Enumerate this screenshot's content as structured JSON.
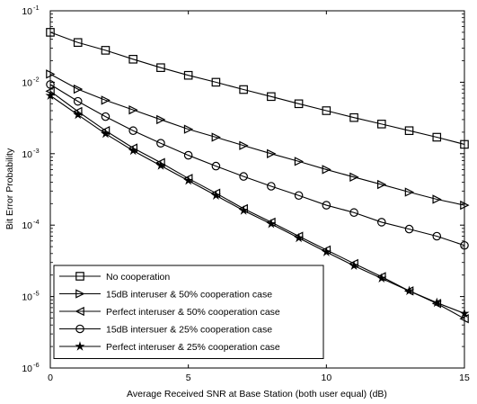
{
  "chart_data": {
    "type": "line",
    "title": "",
    "xlabel": "Average Received SNR at Base Station (both user equal) (dB)",
    "ylabel": "Bit Error Probability",
    "xlim": [
      0,
      15
    ],
    "ylim": [
      1e-06,
      0.1
    ],
    "yscale": "log",
    "grid": false,
    "legend_position": "bottom-left",
    "x_ticks": [
      0,
      5,
      10,
      15
    ],
    "x_tick_labels": [
      "0",
      "5",
      "10",
      "15"
    ],
    "y_ticks": [
      1e-06,
      1e-05,
      0.0001,
      0.001,
      0.01,
      0.1
    ],
    "y_tick_labels": [
      {
        "base": "10",
        "exp": "-6"
      },
      {
        "base": "10",
        "exp": "-5"
      },
      {
        "base": "10",
        "exp": "-4"
      },
      {
        "base": "10",
        "exp": "-3"
      },
      {
        "base": "10",
        "exp": "-2"
      },
      {
        "base": "10",
        "exp": "-1"
      }
    ],
    "x": [
      0,
      1,
      2,
      3,
      4,
      5,
      6,
      7,
      8,
      9,
      10,
      11,
      12,
      13,
      14,
      15
    ],
    "series": [
      {
        "name": "No cooperation",
        "marker": "square",
        "values": [
          0.05,
          0.036,
          0.028,
          0.021,
          0.016,
          0.0125,
          0.01,
          0.0079,
          0.0063,
          0.005,
          0.004,
          0.0032,
          0.0026,
          0.0021,
          0.0017,
          0.00135
        ]
      },
      {
        "name": "15dB interuser & 50% cooperation case",
        "marker": "triangle-right",
        "values": [
          0.013,
          0.008,
          0.0056,
          0.0041,
          0.003,
          0.0022,
          0.0017,
          0.0013,
          0.001,
          0.00078,
          0.0006,
          0.00047,
          0.00037,
          0.00029,
          0.00023,
          0.00019
        ]
      },
      {
        "name": "Perfect interuser & 50% cooperation case",
        "marker": "triangle-left",
        "values": [
          0.0075,
          0.0039,
          0.0021,
          0.0012,
          0.00075,
          0.00045,
          0.00028,
          0.00017,
          0.00011,
          7e-05,
          4.5e-05,
          2.9e-05,
          1.9e-05,
          1.2e-05,
          8e-06,
          4.9e-06
        ]
      },
      {
        "name": "15dB intersuer & 25% cooperation case",
        "marker": "circle",
        "values": [
          0.0093,
          0.0054,
          0.0033,
          0.0021,
          0.0014,
          0.00095,
          0.00067,
          0.00048,
          0.00035,
          0.00026,
          0.00019,
          0.00015,
          0.00011,
          8.8e-05,
          7e-05,
          5.2e-05
        ]
      },
      {
        "name": "Perfect interuser & 25% cooperation case",
        "marker": "star",
        "values": [
          0.0065,
          0.0035,
          0.0019,
          0.0011,
          0.00068,
          0.00042,
          0.00026,
          0.00016,
          0.000104,
          6.6e-05,
          4.2e-05,
          2.7e-05,
          1.8e-05,
          1.2e-05,
          8.2e-06,
          5.8e-06
        ]
      }
    ]
  }
}
